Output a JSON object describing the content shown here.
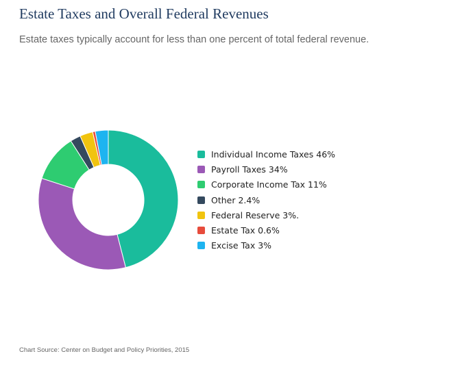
{
  "header": {
    "title": "Estate Taxes and Overall Federal Revenues",
    "subtitle": "Estate taxes typically account for less than one percent of total federal revenue."
  },
  "footer": {
    "source": "Chart Source: Center on Budget and Policy Priorities, 2015"
  },
  "chart_data": {
    "type": "pie",
    "variant": "donut",
    "title": "Estate Taxes and Overall Federal Revenues",
    "legend_position": "right",
    "slices": [
      {
        "label": "Individual Income Taxes 46%",
        "value": 46,
        "color": "#1abc9c"
      },
      {
        "label": "Payroll Taxes 34%",
        "value": 34,
        "color": "#9b59b6"
      },
      {
        "label": "Corporate Income Tax 11%",
        "value": 11,
        "color": "#2ecc71"
      },
      {
        "label": "Other 2.4%",
        "value": 2.4,
        "color": "#34495e"
      },
      {
        "label": "Federal Reserve 3%.",
        "value": 3,
        "color": "#f1c40f"
      },
      {
        "label": "Estate Tax 0.6%",
        "value": 0.6,
        "color": "#e74c3c"
      },
      {
        "label": "Excise Tax 3%",
        "value": 3,
        "color": "#1eb4f0"
      }
    ]
  }
}
